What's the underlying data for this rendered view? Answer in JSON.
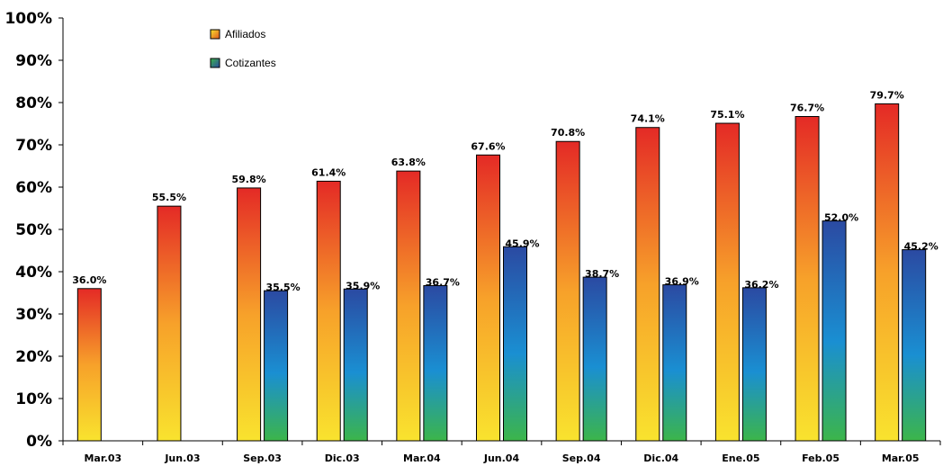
{
  "chart_data": {
    "type": "bar",
    "title": "",
    "xlabel": "",
    "ylabel": "",
    "ylim": [
      0,
      100
    ],
    "yticks": [
      "0%",
      "10%",
      "20%",
      "30%",
      "40%",
      "50%",
      "60%",
      "70%",
      "80%",
      "90%",
      "100%"
    ],
    "categories": [
      "Mar.03",
      "Jun.03",
      "Sep.03",
      "Dic.03",
      "Mar.04",
      "Jun.04",
      "Sep.04",
      "Dic.04",
      "Ene.05",
      "Feb.05",
      "Mar.05"
    ],
    "series": [
      {
        "name": "Afiliados",
        "values": [
          36.0,
          55.5,
          59.8,
          61.4,
          63.8,
          67.6,
          70.8,
          74.1,
          75.1,
          76.7,
          79.7
        ],
        "labels": [
          "36.0%",
          "55.5%",
          "59.8%",
          "61.4%",
          "63.8%",
          "67.6%",
          "70.8%",
          "74.1%",
          "75.1%",
          "76.7%",
          "79.7%"
        ],
        "colors": {
          "top": "#e42a26",
          "middle": "#f7a12a",
          "bottom": "#f9e32e"
        }
      },
      {
        "name": "Cotizantes",
        "values": [
          null,
          null,
          35.5,
          35.9,
          36.7,
          45.9,
          38.7,
          36.9,
          36.2,
          52.0,
          45.2
        ],
        "labels": [
          "",
          "",
          "35.5%",
          "35.9%",
          "36.7%",
          "45.9%",
          "38.7%",
          "36.9%",
          "36.2%",
          "52.0%",
          "45.2%"
        ],
        "colors": {
          "top": "#2b4aa2",
          "middle": "#1a8fd2",
          "bottom": "#3cb54a"
        }
      }
    ],
    "legend": {
      "position": "top-left"
    },
    "grid": false
  }
}
